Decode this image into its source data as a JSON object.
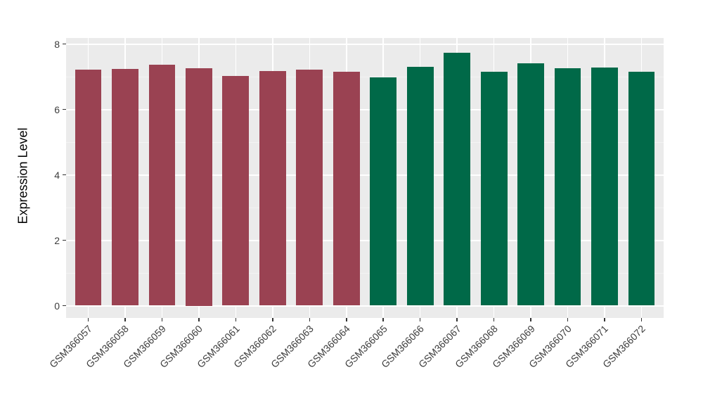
{
  "chart_data": {
    "type": "bar",
    "title": "",
    "xlabel": "",
    "ylabel": "Expression Level",
    "categories": [
      "GSM366057",
      "GSM366058",
      "GSM366059",
      "GSM366060",
      "GSM366061",
      "GSM366062",
      "GSM366063",
      "GSM366064",
      "GSM366065",
      "GSM366066",
      "GSM366067",
      "GSM366068",
      "GSM366069",
      "GSM366070",
      "GSM366071",
      "GSM366072"
    ],
    "values": [
      7.21,
      7.23,
      7.37,
      7.25,
      7.02,
      7.17,
      7.21,
      7.14,
      6.97,
      7.31,
      7.73,
      7.14,
      7.41,
      7.26,
      7.28,
      7.15
    ],
    "bar_colors": [
      "#9A4252",
      "#9A4252",
      "#9A4252",
      "#9A4252",
      "#9A4252",
      "#9A4252",
      "#9A4252",
      "#9A4252",
      "#006948",
      "#006948",
      "#006948",
      "#006948",
      "#006948",
      "#006948",
      "#006948",
      "#006948"
    ],
    "ylim": [
      0,
      8.18
    ],
    "yticks_major": [
      0,
      2,
      4,
      6,
      8
    ],
    "yticks_minor": [
      1,
      3,
      5,
      7
    ],
    "grid": true,
    "legend_position": "none",
    "x_label_angle": 45,
    "bar_width_fraction": 0.72,
    "style": {
      "panel_bg": "#EBEBEB",
      "grid_major_color": "#FFFFFF",
      "grid_minor_color": "#F3F3F3",
      "axis_text_color": "#3D3D3D",
      "axis_title_color": "#000000",
      "tick_mark_color": "#333333",
      "background": "#FFFFFF",
      "group1_color": "#9A4252",
      "group2_color": "#006948"
    }
  }
}
